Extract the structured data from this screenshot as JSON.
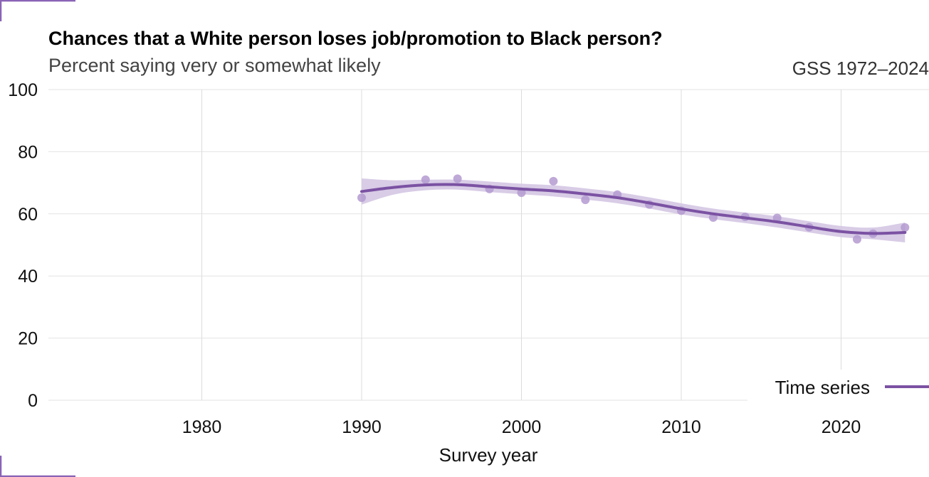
{
  "colors": {
    "accent": "#7b52a3",
    "band": "#d4c6e3",
    "points": "#b49ad0",
    "corner": "#8a63b6"
  },
  "chart_data": {
    "type": "line",
    "title": "Chances that a White person loses job/promotion to Black person?",
    "subtitle": "Percent saying very or somewhat likely",
    "caption": "GSS 1972–2024",
    "xlabel": "Survey year",
    "ylabel": "",
    "xlim": [
      1971,
      2025
    ],
    "ylim": [
      0,
      100
    ],
    "x_ticks": [
      1980,
      1990,
      2000,
      2010,
      2020
    ],
    "y_ticks": [
      0,
      20,
      40,
      60,
      80,
      100
    ],
    "grid": true,
    "legend": {
      "position": "bottom-right",
      "entries": [
        "Time series"
      ]
    },
    "points": {
      "x": [
        1990,
        1994,
        1996,
        1998,
        2000,
        2002,
        2004,
        2006,
        2008,
        2010,
        2012,
        2014,
        2016,
        2018,
        2021,
        2022,
        2024
      ],
      "y": [
        65.2,
        71.0,
        71.3,
        68.0,
        66.8,
        70.5,
        64.5,
        66.2,
        63.0,
        61.0,
        58.8,
        59.0,
        58.7,
        55.7,
        51.8,
        53.6,
        55.6
      ]
    },
    "series": [
      {
        "name": "Time series",
        "x": [
          1990,
          1992,
          1994,
          1996,
          1998,
          2000,
          2002,
          2004,
          2006,
          2008,
          2010,
          2012,
          2014,
          2016,
          2018,
          2020,
          2022,
          2024
        ],
        "values": [
          67.2,
          68.5,
          69.3,
          69.4,
          68.7,
          68.0,
          67.4,
          66.4,
          65.2,
          63.5,
          61.6,
          60.0,
          58.7,
          57.4,
          55.8,
          54.3,
          53.7,
          54.0
        ],
        "lower": [
          63.0,
          66.2,
          67.6,
          67.8,
          67.0,
          66.3,
          65.6,
          64.6,
          63.4,
          61.7,
          59.8,
          58.3,
          57.0,
          55.6,
          54.0,
          52.5,
          51.8,
          50.8
        ],
        "upper": [
          71.4,
          70.8,
          71.0,
          71.0,
          70.4,
          69.7,
          69.2,
          68.2,
          67.0,
          65.3,
          63.4,
          61.7,
          60.4,
          59.2,
          57.6,
          56.1,
          55.6,
          57.2
        ]
      }
    ]
  }
}
